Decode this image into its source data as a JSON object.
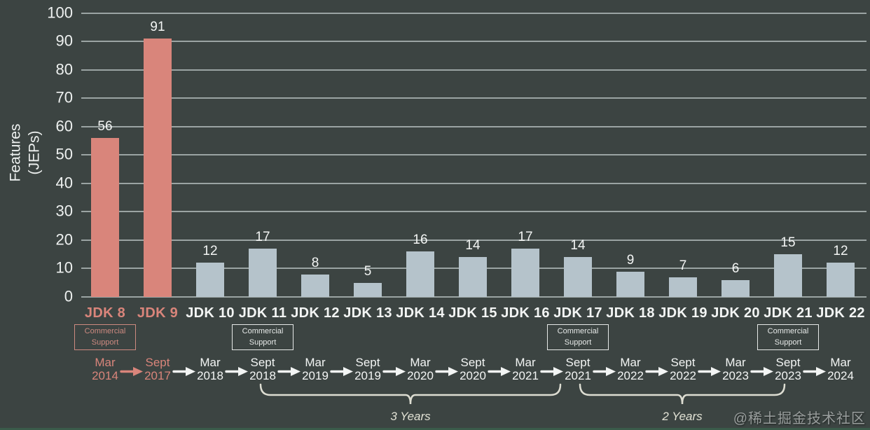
{
  "chart_data": {
    "type": "bar",
    "title": "",
    "ylabel_lines": [
      "Features",
      "(JEPs)"
    ],
    "ylim": [
      0,
      100
    ],
    "yticks": [
      0,
      10,
      20,
      30,
      40,
      50,
      60,
      70,
      80,
      90,
      100
    ],
    "grid": true,
    "categories": [
      "JDK 8",
      "JDK 9",
      "JDK 10",
      "JDK 11",
      "JDK 12",
      "JDK 13",
      "JDK 14",
      "JDK 15",
      "JDK 16",
      "JDK 17",
      "JDK 18",
      "JDK 19",
      "JDK 20",
      "JDK 21",
      "JDK 22"
    ],
    "values": [
      56,
      91,
      12,
      17,
      8,
      5,
      16,
      14,
      17,
      14,
      9,
      7,
      6,
      15,
      12
    ],
    "highlighted_categories": [
      "JDK 8",
      "JDK 9"
    ],
    "bar_color": "#b5c3cb",
    "highlight_color": "#d9857b",
    "background_color": "#3c4442",
    "commercial_support": {
      "label_lines": [
        "Commercial",
        "Support"
      ],
      "versions": [
        "JDK 8",
        "JDK 11",
        "JDK 17",
        "JDK 21"
      ]
    },
    "timeline": [
      {
        "month": "Mar",
        "year": "2014",
        "highlight": true
      },
      {
        "month": "Sept",
        "year": "2017",
        "highlight": true
      },
      {
        "month": "Mar",
        "year": "2018",
        "highlight": false
      },
      {
        "month": "Sept",
        "year": "2018",
        "highlight": false
      },
      {
        "month": "Mar",
        "year": "2019",
        "highlight": false
      },
      {
        "month": "Sept",
        "year": "2019",
        "highlight": false
      },
      {
        "month": "Mar",
        "year": "2020",
        "highlight": false
      },
      {
        "month": "Sept",
        "year": "2020",
        "highlight": false
      },
      {
        "month": "Mar",
        "year": "2021",
        "highlight": false
      },
      {
        "month": "Sept",
        "year": "2021",
        "highlight": false
      },
      {
        "month": "Mar",
        "year": "2022",
        "highlight": false
      },
      {
        "month": "Sept",
        "year": "2022",
        "highlight": false
      },
      {
        "month": "Mar",
        "year": "2023",
        "highlight": false
      },
      {
        "month": "Sept",
        "year": "2023",
        "highlight": false
      },
      {
        "month": "Mar",
        "year": "2024",
        "highlight": false
      }
    ],
    "spans": [
      {
        "label": "3 Years",
        "from": "Sept 2018",
        "to": "Sept 2021",
        "from_index": 3,
        "to_index": 9
      },
      {
        "label": "2 Years",
        "from": "Sept 2021",
        "to": "Sept 2023",
        "from_index": 9,
        "to_index": 13
      }
    ]
  },
  "watermark": "@稀土掘金技术社区"
}
